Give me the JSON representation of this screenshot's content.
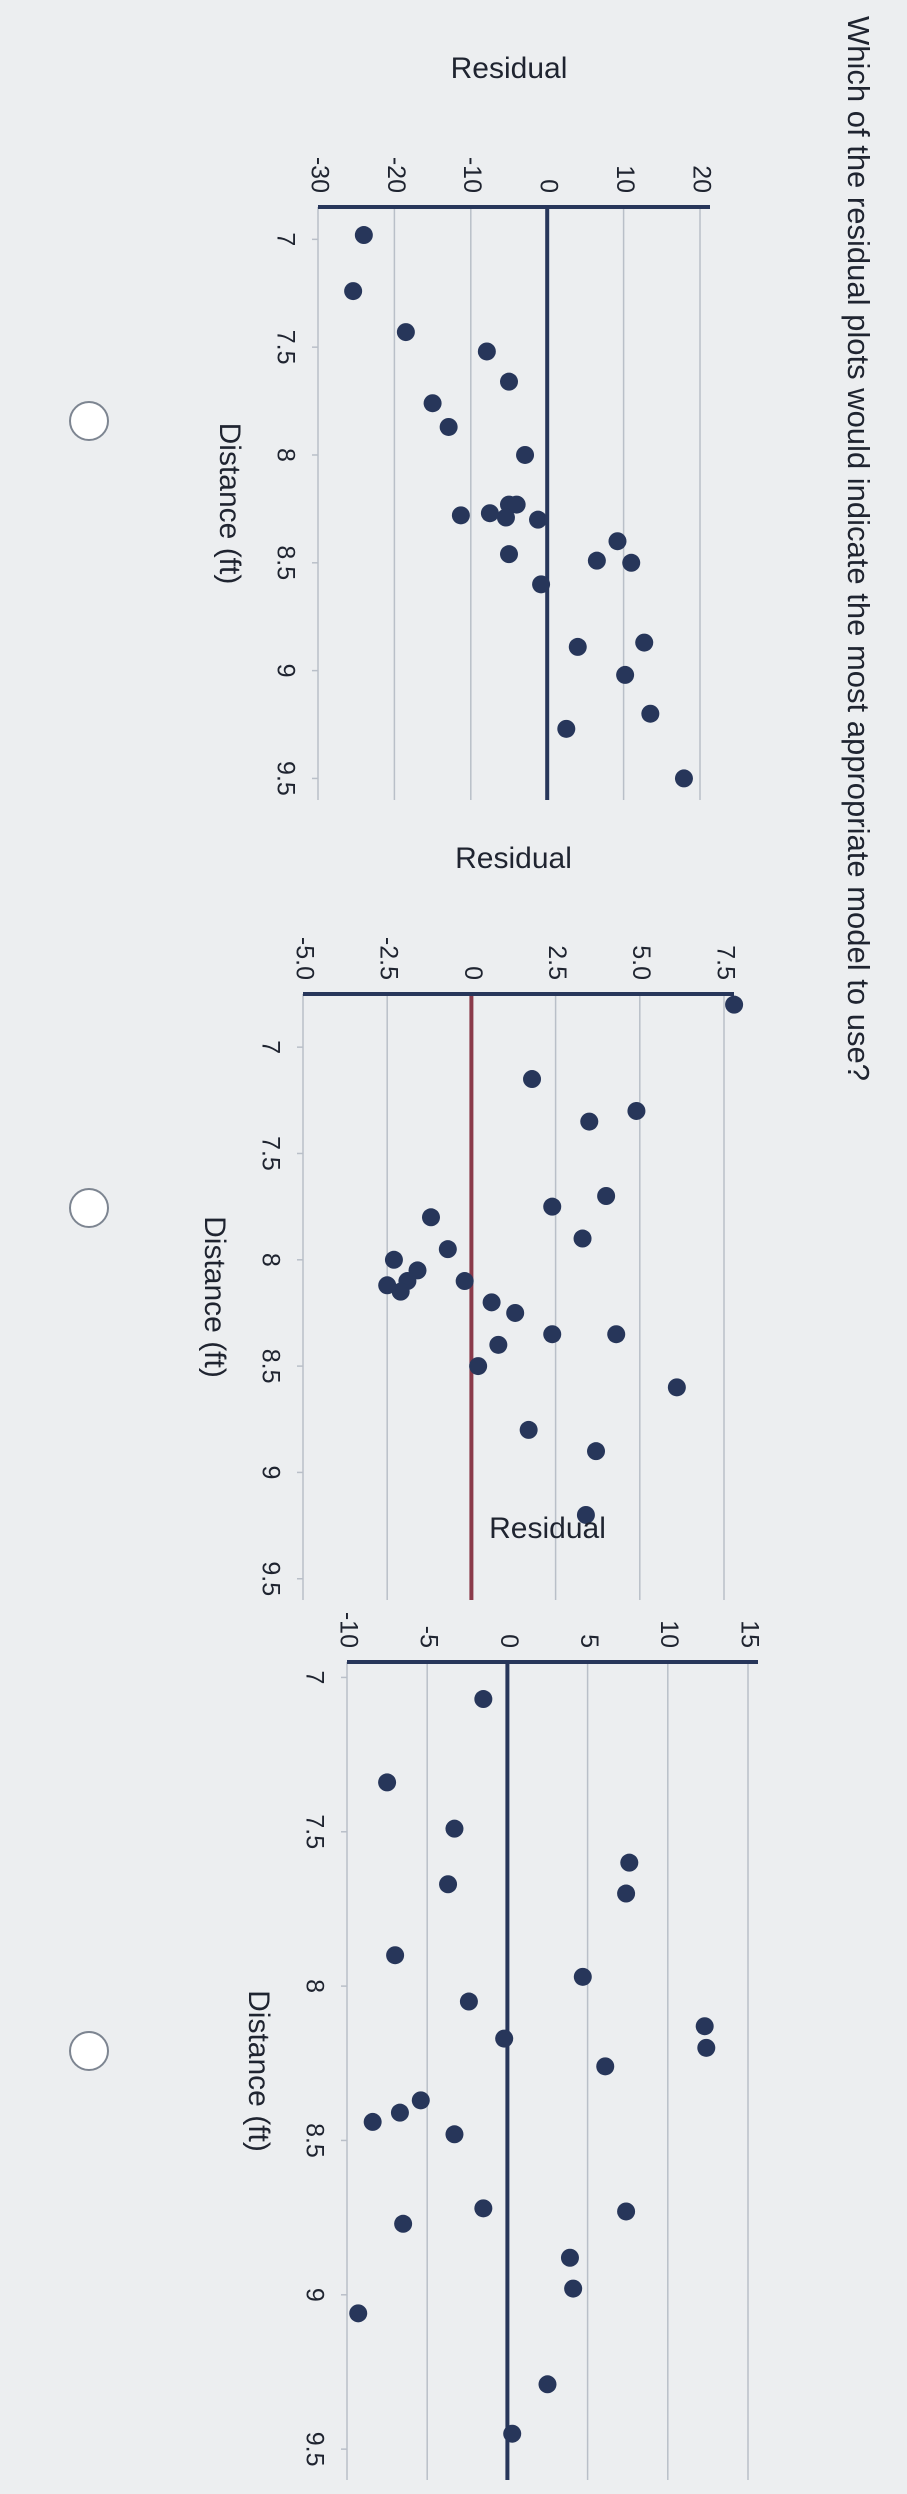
{
  "question": "Which of the residual plots would indicate the most appropriate model to use?",
  "chart_data": [
    {
      "type": "scatter",
      "y_label": "Residual",
      "x_label": "Distance (ft)",
      "color": "#27365a",
      "zero_line_color": "#27365a",
      "grid": true,
      "x": [
        6.98,
        7.24,
        7.43,
        7.52,
        7.66,
        7.76,
        7.87,
        8.0,
        8.28,
        8.23,
        8.23,
        8.29,
        8.27,
        8.3,
        8.46,
        8.6,
        8.4,
        8.49,
        8.5,
        8.89,
        8.87,
        9.02,
        9.27,
        9.2,
        9.5
      ],
      "values": [
        -24,
        -25.4,
        -18.5,
        -7.9,
        -5,
        -15,
        -12.9,
        -2.9,
        -11.3,
        -5,
        -4,
        -5.4,
        -7.5,
        -1.2,
        -5,
        -0.8,
        9.2,
        6.5,
        11,
        4,
        12.7,
        10.2,
        2.5,
        13.5,
        17.9
      ],
      "xlim": [
        6.85,
        9.6
      ],
      "xticks": [
        7,
        7.5,
        8,
        8.5,
        9,
        9.5
      ],
      "ylim": [
        -30,
        20
      ],
      "yticks": [
        -30,
        -20,
        -10,
        0,
        10,
        20
      ]
    },
    {
      "type": "scatter",
      "y_label": "Residual",
      "x_label": "Distance (ft)",
      "color": "#27365a",
      "zero_line_color": "#8a3a4a",
      "grid": true,
      "x": [
        6.8,
        7.3,
        7.35,
        7.7,
        7.75,
        7.9,
        7.15,
        7.8,
        7.95,
        8.05,
        8.0,
        8.1,
        8.15,
        8.12,
        8.1,
        8.2,
        8.25,
        8.4,
        8.35,
        8.35,
        8.6,
        8.8,
        8.9,
        8.5,
        9.2
      ],
      "values": [
        7.8,
        4.9,
        3.5,
        4.0,
        2.4,
        3.3,
        1.8,
        -1.2,
        -0.7,
        -1.6,
        -2.3,
        -1.9,
        -2.1,
        -2.5,
        -0.2,
        0.6,
        1.3,
        0.8,
        2.4,
        4.3,
        6.1,
        1.7,
        3.7,
        0.2,
        3.4
      ],
      "xlim": [
        6.75,
        9.6
      ],
      "xticks": [
        7,
        7.5,
        8,
        8.5,
        9,
        9.5
      ],
      "ylim": [
        -5,
        7.5
      ],
      "yticks": [
        {
          "value": -5,
          "label": "-5.0"
        },
        -2.5,
        0,
        2.5,
        {
          "value": 5,
          "label": "5.0"
        },
        7.5
      ]
    },
    {
      "type": "scatter",
      "y_label": "Residual",
      "x_label": "Distance (ft)",
      "color": "#27365a",
      "zero_line_color": "#27365a",
      "grid": true,
      "x": [
        7.07,
        7.34,
        7.49,
        7.67,
        7.6,
        7.7,
        7.97,
        7.9,
        8.05,
        8.17,
        8.13,
        8.2,
        8.26,
        8.37,
        8.41,
        8.44,
        8.48,
        8.72,
        8.73,
        8.77,
        8.88,
        8.98,
        9.06,
        9.29,
        9.45
      ],
      "values": [
        -1.5,
        -7.5,
        -3.3,
        -3.7,
        7.6,
        7.4,
        4.7,
        -7,
        -2.4,
        -0.2,
        12.3,
        12.4,
        6.1,
        -5.4,
        -6.7,
        -8.4,
        -3.3,
        -1.5,
        7.4,
        -6.5,
        3.9,
        4.1,
        -9.3,
        2.5,
        0.3
      ],
      "xlim": [
        6.95,
        9.6
      ],
      "xticks": [
        7,
        7.5,
        8,
        8.5,
        9,
        9.5
      ],
      "ylim": [
        -10,
        15
      ],
      "yticks": [
        -10,
        -5,
        0,
        5,
        10,
        15
      ]
    }
  ]
}
